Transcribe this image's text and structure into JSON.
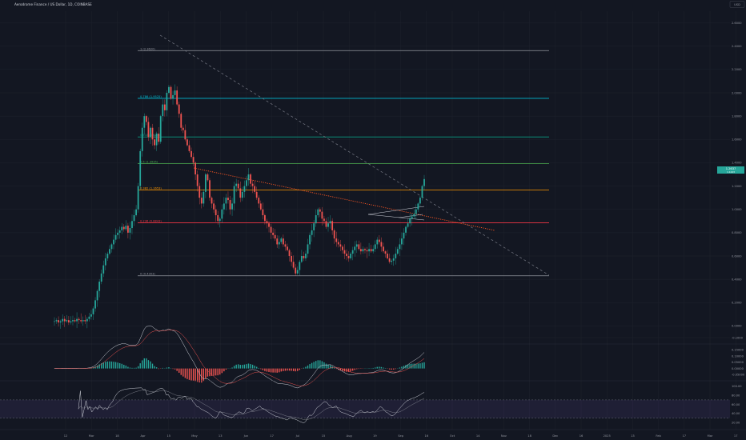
{
  "header": {
    "symbol_title": "Aerodrome Finance / US Dollar, 1D, COINBASE",
    "currency": "USD"
  },
  "colors": {
    "background": "#131722",
    "up": "#26a69a",
    "down": "#ef5350",
    "grid": "#1e222d",
    "fib_0": "#9598a1",
    "fib_236": "#f23645",
    "fib_382": "#ff9800",
    "fib_5": "#4caf50",
    "fib_618": "#089981",
    "fib_786": "#00bcd4",
    "fib_1": "#9598a1",
    "trendline_red": "#ff5722",
    "trendline_gray": "#787b86",
    "rsi_band": "#7e57c2"
  },
  "chart_data": [
    {
      "type": "candlestick",
      "panel": "price",
      "x_ticks": [
        "12",
        "Mar",
        "18",
        "Apr",
        "15",
        "May",
        "13",
        "Jun",
        "17",
        "Jul",
        "15",
        "Aug",
        "19",
        "Sep",
        "16",
        "Oct",
        "14",
        "Nov",
        "18",
        "Dec",
        "16",
        "2025",
        "13",
        "Feb",
        "17",
        "Mar",
        "17",
        "Apr"
      ],
      "y_ticks": [
        "2.6000",
        "2.4000",
        "2.2000",
        "2.0000",
        "1.8000",
        "1.6000",
        "1.4000",
        "1.2000",
        "1.0000",
        "0.8000",
        "0.6000",
        "0.4000",
        "0.2000",
        "0.0000",
        "-0.1000"
      ],
      "ylim": [
        -0.1,
        2.7
      ],
      "last_price": "1.2637",
      "last_price_sub": "1.1243",
      "fib_levels": [
        {
          "label": "1 (2.3620)",
          "value": 2.362,
          "color_key": "fib_1"
        },
        {
          "label": "0.786 (1.9525)",
          "value": 1.9525,
          "color_key": "fib_786"
        },
        {
          "label": "0.618 (1.6212)",
          "value": 1.6212,
          "color_key": "fib_618"
        },
        {
          "label": "0.5 (1.3935)",
          "value": 1.3935,
          "color_key": "fib_5"
        },
        {
          "label": "0.382 (1.1653)",
          "value": 1.1653,
          "color_key": "fib_382"
        },
        {
          "label": "0.236 (0.8843)",
          "value": 0.8843,
          "color_key": "fib_236"
        },
        {
          "label": "0 (0.4303)",
          "value": 0.4303,
          "color_key": "fib_0"
        }
      ],
      "close_series": [
        0.04,
        0.05,
        0.03,
        0.04,
        0.06,
        0.04,
        0.05,
        0.03,
        0.04,
        0.05,
        0.04,
        0.06,
        0.05,
        0.04,
        0.05,
        0.04,
        0.06,
        0.08,
        0.1,
        0.15,
        0.22,
        0.3,
        0.38,
        0.45,
        0.52,
        0.58,
        0.62,
        0.66,
        0.7,
        0.74,
        0.78,
        0.8,
        0.82,
        0.85,
        0.83,
        0.86,
        0.8,
        0.84,
        0.9,
        0.95,
        1.0,
        1.2,
        1.5,
        1.7,
        1.8,
        1.75,
        1.62,
        1.7,
        1.6,
        1.55,
        1.65,
        1.58,
        1.8,
        1.9,
        1.85,
        2.0,
        2.05,
        1.95,
        1.98,
        2.02,
        1.9,
        1.82,
        1.7,
        1.68,
        1.6,
        1.55,
        1.5,
        1.45,
        1.4,
        1.3,
        1.2,
        1.1,
        1.05,
        1.15,
        1.3,
        1.25,
        1.1,
        1.05,
        1.0,
        0.95,
        0.9,
        0.92,
        1.0,
        1.05,
        1.1,
        1.08,
        1.0,
        1.05,
        1.2,
        1.22,
        1.18,
        1.1,
        1.15,
        1.2,
        1.25,
        1.3,
        1.22,
        1.2,
        1.15,
        1.1,
        1.05,
        1.0,
        0.95,
        0.9,
        0.88,
        0.85,
        0.8,
        0.78,
        0.75,
        0.7,
        0.72,
        0.75,
        0.7,
        0.68,
        0.65,
        0.6,
        0.55,
        0.5,
        0.45,
        0.48,
        0.55,
        0.6,
        0.58,
        0.62,
        0.7,
        0.78,
        0.82,
        0.88,
        0.95,
        1.0,
        0.98,
        0.92,
        0.9,
        0.85,
        0.88,
        0.9,
        0.82,
        0.75,
        0.72,
        0.7,
        0.68,
        0.65,
        0.62,
        0.6,
        0.58,
        0.62,
        0.65,
        0.68,
        0.7,
        0.66,
        0.64,
        0.66,
        0.65,
        0.64,
        0.66,
        0.64,
        0.66,
        0.7,
        0.74,
        0.72,
        0.68,
        0.64,
        0.62,
        0.58,
        0.55,
        0.56,
        0.58,
        0.62,
        0.66,
        0.7,
        0.75,
        0.8,
        0.85,
        0.88,
        0.92,
        0.94,
        0.96,
        1.0,
        1.05,
        1.1,
        1.2,
        1.26
      ]
    },
    {
      "type": "macd",
      "panel": "macd",
      "y_ticks": [
        "0.15000",
        "0.10000",
        "0.05000",
        "0.00000",
        "-0.05000"
      ],
      "ylim": [
        -0.06,
        0.17
      ]
    },
    {
      "type": "line",
      "panel": "rsi",
      "y_ticks": [
        "100.00",
        "80.00",
        "60.00",
        "40.00",
        "20.00"
      ],
      "ylim": [
        10,
        105
      ],
      "bands": [
        70,
        30
      ]
    }
  ]
}
